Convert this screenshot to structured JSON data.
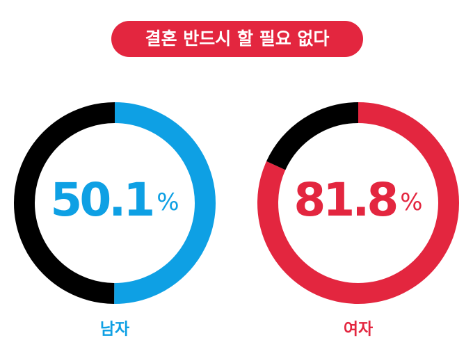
{
  "title": "결혼 반드시 할 필요 없다",
  "chart_data": [
    {
      "type": "donut",
      "label": "남자",
      "values": [
        50.1,
        49.9
      ],
      "value_labels": [
        "50.1%",
        null
      ],
      "colors": [
        "#0ea0e4",
        "#000000"
      ]
    },
    {
      "type": "donut",
      "label": "여자",
      "values": [
        81.8,
        18.2
      ],
      "value_labels": [
        "81.8%",
        null
      ],
      "colors": [
        "#e3263f",
        "#000000"
      ]
    }
  ]
}
